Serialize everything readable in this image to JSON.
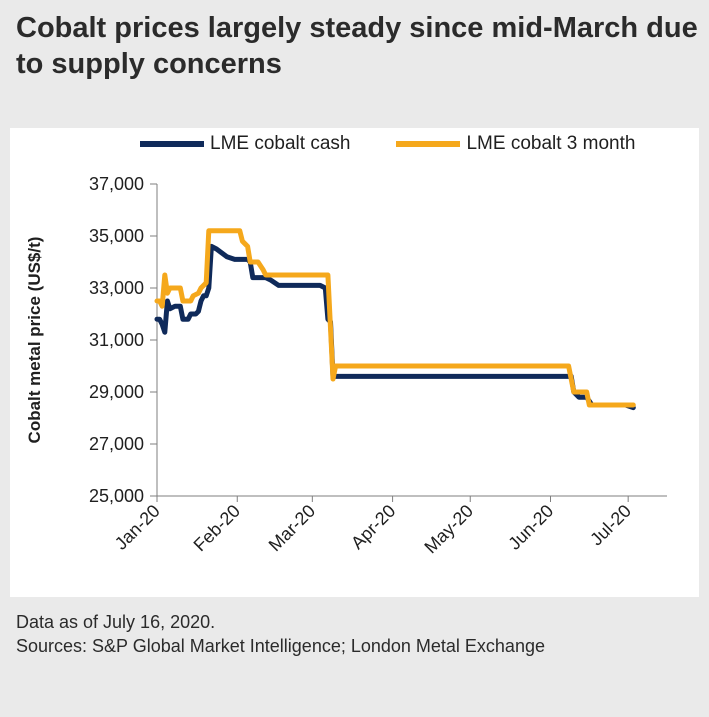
{
  "title": "Cobalt prices largely steady since mid-March due to supply concerns",
  "footer": {
    "note": "Data as of July 16, 2020.",
    "sources": "Sources: S&P Global Market Intelligence; London Metal Exchange"
  },
  "chart_data": {
    "type": "line",
    "ylabel": "Cobalt metal price  (US$/t)",
    "ylim": [
      25000,
      37000
    ],
    "yticks": [
      "25,000",
      "27,000",
      "29,000",
      "31,000",
      "33,000",
      "35,000",
      "37,000"
    ],
    "xlim": [
      "2020-01-01",
      "2020-07-16"
    ],
    "xticks": [
      {
        "label": "Jan-20",
        "date": "2020-01-01"
      },
      {
        "label": "Feb-20",
        "date": "2020-02-01"
      },
      {
        "label": "Mar-20",
        "date": "2020-03-01"
      },
      {
        "label": "Apr-20",
        "date": "2020-04-01"
      },
      {
        "label": "May-20",
        "date": "2020-05-01"
      },
      {
        "label": "Jun-20",
        "date": "2020-06-01"
      },
      {
        "label": "Jul-20",
        "date": "2020-07-01"
      }
    ],
    "legend_position": "top",
    "grid": false,
    "series": [
      {
        "name": "LME cobalt cash",
        "color": "#0f2a5a",
        "points": [
          [
            "2020-01-01",
            31800
          ],
          [
            "2020-01-02",
            31800
          ],
          [
            "2020-01-03",
            31600
          ],
          [
            "2020-01-04",
            31300
          ],
          [
            "2020-01-05",
            32500
          ],
          [
            "2020-01-06",
            32200
          ],
          [
            "2020-01-08",
            32300
          ],
          [
            "2020-01-10",
            32300
          ],
          [
            "2020-01-11",
            31800
          ],
          [
            "2020-01-13",
            31800
          ],
          [
            "2020-01-14",
            32000
          ],
          [
            "2020-01-16",
            32000
          ],
          [
            "2020-01-17",
            32100
          ],
          [
            "2020-01-18",
            32500
          ],
          [
            "2020-01-19",
            32700
          ],
          [
            "2020-01-20",
            32700
          ],
          [
            "2020-01-21",
            33000
          ],
          [
            "2020-01-22",
            34600
          ],
          [
            "2020-01-24",
            34500
          ],
          [
            "2020-01-28",
            34200
          ],
          [
            "2020-01-31",
            34100
          ],
          [
            "2020-02-05",
            34100
          ],
          [
            "2020-02-06",
            34000
          ],
          [
            "2020-02-07",
            33400
          ],
          [
            "2020-02-11",
            33400
          ],
          [
            "2020-02-12",
            33400
          ],
          [
            "2020-02-14",
            33300
          ],
          [
            "2020-02-17",
            33100
          ],
          [
            "2020-02-24",
            33100
          ],
          [
            "2020-03-04",
            33100
          ],
          [
            "2020-03-06",
            33000
          ],
          [
            "2020-03-07",
            31800
          ],
          [
            "2020-03-08",
            31700
          ],
          [
            "2020-03-09",
            29600
          ],
          [
            "2020-03-15",
            29600
          ],
          [
            "2020-04-15",
            29600
          ],
          [
            "2020-05-15",
            29600
          ],
          [
            "2020-06-08",
            29600
          ],
          [
            "2020-06-09",
            29600
          ],
          [
            "2020-06-10",
            29000
          ],
          [
            "2020-06-12",
            28800
          ],
          [
            "2020-06-15",
            28800
          ],
          [
            "2020-06-17",
            28500
          ],
          [
            "2020-06-30",
            28500
          ],
          [
            "2020-07-03",
            28400
          ]
        ]
      },
      {
        "name": "LME cobalt 3 month",
        "color": "#f5a81c",
        "points": [
          [
            "2020-01-01",
            32500
          ],
          [
            "2020-01-02",
            32500
          ],
          [
            "2020-01-03",
            32300
          ],
          [
            "2020-01-04",
            33500
          ],
          [
            "2020-01-05",
            32800
          ],
          [
            "2020-01-06",
            33000
          ],
          [
            "2020-01-10",
            33000
          ],
          [
            "2020-01-11",
            32500
          ],
          [
            "2020-01-14",
            32500
          ],
          [
            "2020-01-15",
            32700
          ],
          [
            "2020-01-17",
            32800
          ],
          [
            "2020-01-18",
            33000
          ],
          [
            "2020-01-20",
            33200
          ],
          [
            "2020-01-21",
            35200
          ],
          [
            "2020-01-24",
            35200
          ],
          [
            "2020-02-02",
            35200
          ],
          [
            "2020-02-03",
            34800
          ],
          [
            "2020-02-05",
            34600
          ],
          [
            "2020-02-06",
            34000
          ],
          [
            "2020-02-08",
            34000
          ],
          [
            "2020-02-09",
            34000
          ],
          [
            "2020-02-11",
            33700
          ],
          [
            "2020-02-12",
            33500
          ],
          [
            "2020-02-20",
            33500
          ],
          [
            "2020-03-02",
            33500
          ],
          [
            "2020-03-07",
            33500
          ],
          [
            "2020-03-09",
            29500
          ],
          [
            "2020-03-10",
            30000
          ],
          [
            "2020-04-15",
            30000
          ],
          [
            "2020-05-15",
            30000
          ],
          [
            "2020-06-08",
            30000
          ],
          [
            "2020-06-09",
            29500
          ],
          [
            "2020-06-10",
            29000
          ],
          [
            "2020-06-15",
            29000
          ],
          [
            "2020-06-16",
            28500
          ],
          [
            "2020-07-03",
            28500
          ]
        ]
      }
    ]
  }
}
